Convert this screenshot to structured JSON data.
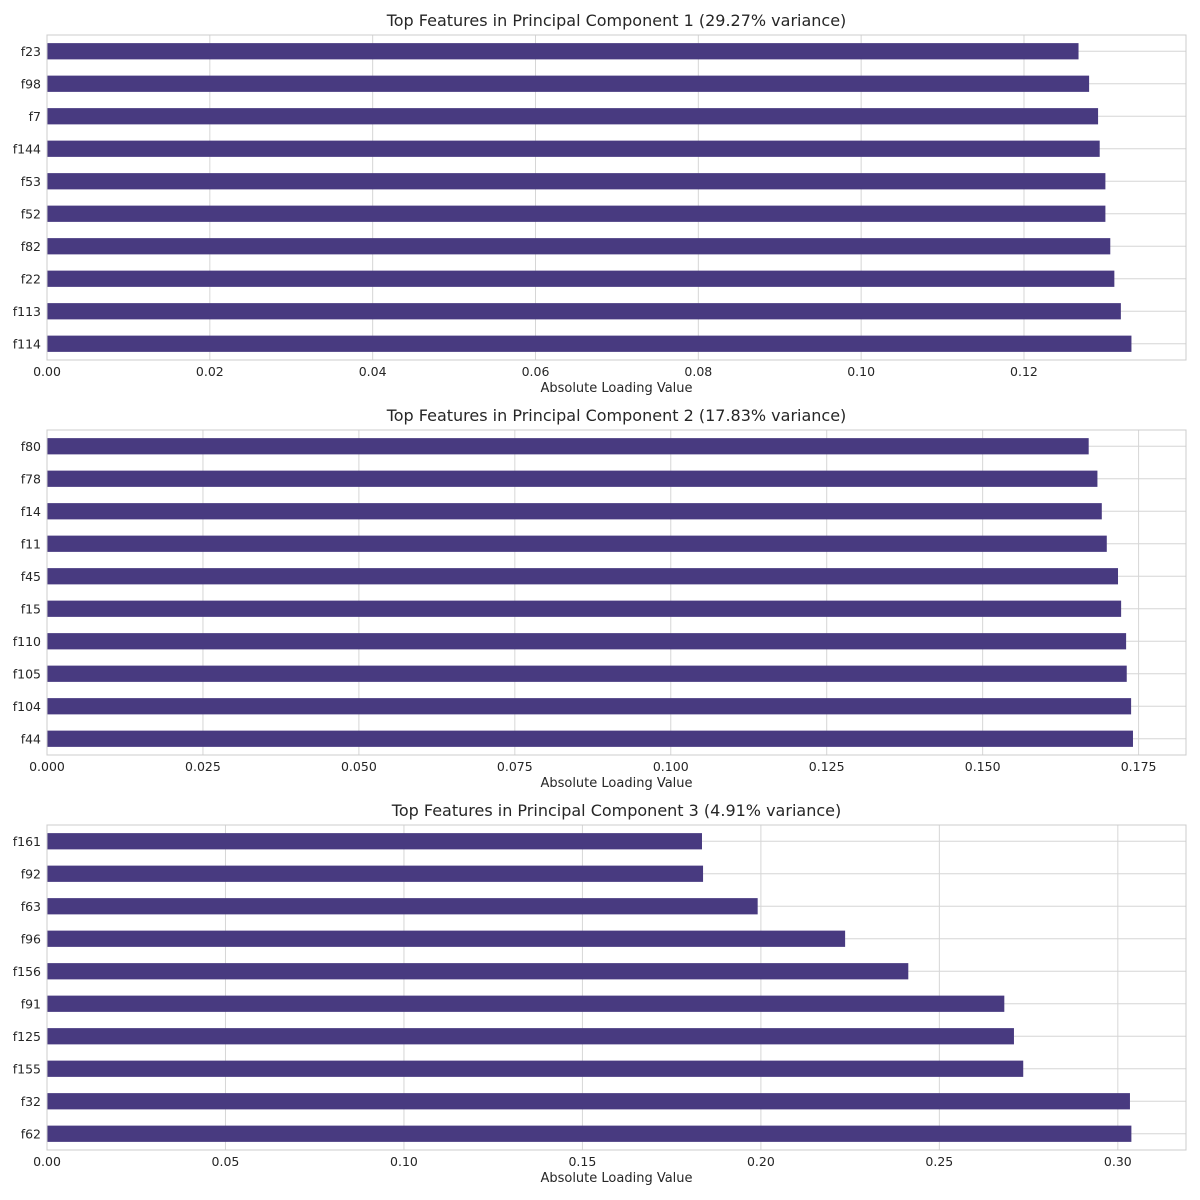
{
  "bar_color": "#483a80",
  "chart_data": [
    {
      "type": "bar",
      "orientation": "horizontal",
      "title": "Top Features in Principal Component 1 (29.27% variance)",
      "xlabel": "Absolute Loading Value",
      "xlim": [
        0,
        0.1399
      ],
      "xticks": [
        0.0,
        0.02,
        0.04,
        0.06,
        0.08,
        0.1,
        0.12
      ],
      "xtick_labels": [
        "0.00",
        "0.02",
        "0.04",
        "0.06",
        "0.08",
        "0.10",
        "0.12"
      ],
      "categories": [
        "f23",
        "f98",
        "f7",
        "f144",
        "f53",
        "f52",
        "f82",
        "f22",
        "f113",
        "f114"
      ],
      "values": [
        0.1267,
        0.128,
        0.1291,
        0.1293,
        0.13,
        0.13,
        0.1306,
        0.1311,
        0.1319,
        0.1332
      ],
      "grid": true
    },
    {
      "type": "bar",
      "orientation": "horizontal",
      "title": "Top Features in Principal Component 2 (17.83% variance)",
      "xlabel": "Absolute Loading Value",
      "xlim": [
        0,
        0.1826
      ],
      "xticks": [
        0.0,
        0.025,
        0.05,
        0.075,
        0.1,
        0.125,
        0.15,
        0.175
      ],
      "xtick_labels": [
        "0.000",
        "0.025",
        "0.050",
        "0.075",
        "0.100",
        "0.125",
        "0.150",
        "0.175"
      ],
      "categories": [
        "f80",
        "f78",
        "f14",
        "f11",
        "f45",
        "f15",
        "f110",
        "f105",
        "f104",
        "f44"
      ],
      "values": [
        0.167,
        0.1684,
        0.1691,
        0.1699,
        0.1717,
        0.1722,
        0.173,
        0.1731,
        0.1738,
        0.1741
      ],
      "grid": true
    },
    {
      "type": "bar",
      "orientation": "horizontal",
      "title": "Top Features in Principal Component 3 (4.91% variance)",
      "xlabel": "Absolute Loading Value",
      "xlim": [
        0,
        0.3191
      ],
      "xticks": [
        0.0,
        0.05,
        0.1,
        0.15,
        0.2,
        0.25,
        0.3
      ],
      "xtick_labels": [
        "0.00",
        "0.05",
        "0.10",
        "0.15",
        "0.20",
        "0.25",
        "0.30"
      ],
      "categories": [
        "f161",
        "f92",
        "f63",
        "f96",
        "f156",
        "f91",
        "f125",
        "f155",
        "f32",
        "f62"
      ],
      "values": [
        0.1835,
        0.1838,
        0.1991,
        0.2236,
        0.2413,
        0.2682,
        0.2709,
        0.2735,
        0.3034,
        0.3038
      ],
      "grid": true
    }
  ]
}
